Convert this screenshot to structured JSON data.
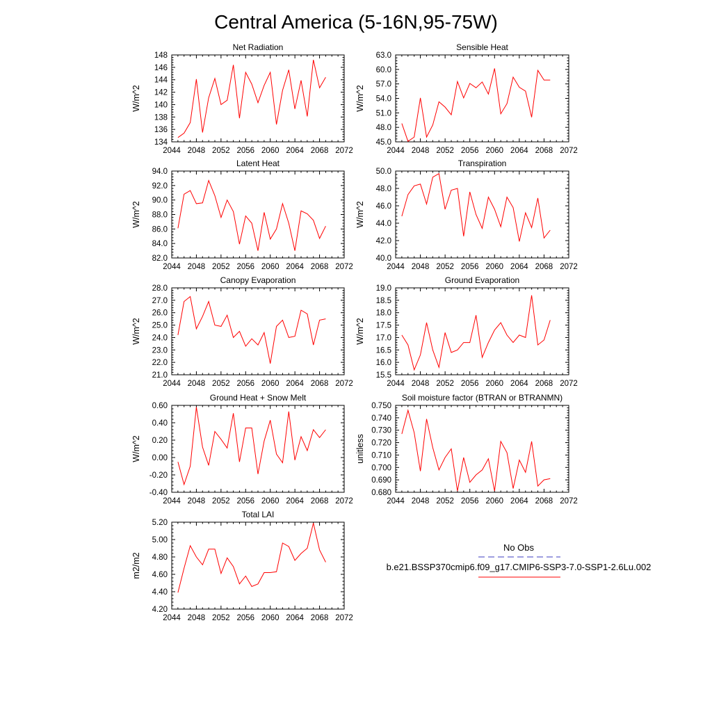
{
  "page_title": "Central America (5-16N,95-75W)",
  "legend": {
    "obs_label": "No Obs",
    "model_label": "b.e21.BSSP370cmip6.f09_g17.CMIP6-SSP3-7.0-SSP1-2.6Lu.002",
    "obs_color": "#3b3bc0",
    "model_color": "#ff0000"
  },
  "chart_data": [
    {
      "type": "line",
      "title": "Net Radiation",
      "ylabel": "W/m^2",
      "xlim": [
        2044,
        2072
      ],
      "xticks": [
        "2044",
        "2048",
        "2052",
        "2056",
        "2060",
        "2064",
        "2068",
        "2072"
      ],
      "ylim": [
        134,
        148
      ],
      "yticks": [
        "134",
        "136",
        "138",
        "140",
        "142",
        "144",
        "146",
        "148"
      ],
      "x": [
        2045,
        2046,
        2047,
        2048,
        2049,
        2050,
        2051,
        2052,
        2053,
        2054,
        2055,
        2056,
        2057,
        2058,
        2059,
        2060,
        2061,
        2062,
        2063,
        2064,
        2065,
        2066,
        2067,
        2068,
        2069
      ],
      "series": [
        {
          "color": "#ff0000",
          "values": [
            134.7,
            135.4,
            137.1,
            144.1,
            135.5,
            141.1,
            144.2,
            140.0,
            140.7,
            146.4,
            137.8,
            145.2,
            143.3,
            140.3,
            143.1,
            145.2,
            136.8,
            142.3,
            145.6,
            139.3,
            143.9,
            138.1,
            147.2,
            142.7,
            144.4
          ]
        }
      ]
    },
    {
      "type": "line",
      "title": "Sensible Heat",
      "ylabel": "W/m^2",
      "xlim": [
        2044,
        2072
      ],
      "xticks": [
        "2044",
        "2048",
        "2052",
        "2056",
        "2060",
        "2064",
        "2068",
        "2072"
      ],
      "ylim": [
        45.0,
        63.0
      ],
      "yticks": [
        "45.0",
        "48.0",
        "51.0",
        "54.0",
        "57.0",
        "60.0",
        "63.0"
      ],
      "x": [
        2045,
        2046,
        2047,
        2048,
        2049,
        2050,
        2051,
        2052,
        2053,
        2054,
        2055,
        2056,
        2057,
        2058,
        2059,
        2060,
        2061,
        2062,
        2063,
        2064,
        2065,
        2066,
        2067,
        2068,
        2069
      ],
      "series": [
        {
          "color": "#ff0000",
          "values": [
            48.8,
            45.1,
            46.0,
            54.1,
            46.0,
            48.5,
            53.3,
            52.2,
            50.6,
            57.5,
            54.1,
            57.1,
            56.2,
            57.4,
            54.9,
            60.2,
            50.8,
            52.9,
            58.4,
            56.3,
            55.5,
            50.1,
            59.8,
            57.8,
            57.8
          ]
        }
      ]
    },
    {
      "type": "line",
      "title": "Latent Heat",
      "ylabel": "W/m^2",
      "xlim": [
        2044,
        2072
      ],
      "xticks": [
        "2044",
        "2048",
        "2052",
        "2056",
        "2060",
        "2064",
        "2068",
        "2072"
      ],
      "ylim": [
        82.0,
        94.0
      ],
      "yticks": [
        "82.0",
        "84.0",
        "86.0",
        "88.0",
        "90.0",
        "92.0",
        "94.0"
      ],
      "x": [
        2045,
        2046,
        2047,
        2048,
        2049,
        2050,
        2051,
        2052,
        2053,
        2054,
        2055,
        2056,
        2057,
        2058,
        2059,
        2060,
        2061,
        2062,
        2063,
        2064,
        2065,
        2066,
        2067,
        2068,
        2069
      ],
      "series": [
        {
          "color": "#ff0000",
          "values": [
            86.1,
            90.8,
            91.3,
            89.5,
            89.6,
            92.7,
            90.6,
            87.6,
            90.0,
            88.4,
            83.9,
            87.8,
            86.8,
            83.0,
            88.3,
            84.6,
            86.0,
            89.5,
            86.8,
            83.0,
            88.5,
            88.1,
            87.2,
            84.7,
            86.4
          ]
        }
      ]
    },
    {
      "type": "line",
      "title": "Transpiration",
      "ylabel": "W/m^2",
      "xlim": [
        2044,
        2072
      ],
      "xticks": [
        "2044",
        "2048",
        "2052",
        "2056",
        "2060",
        "2064",
        "2068",
        "2072"
      ],
      "ylim": [
        40.0,
        50.0
      ],
      "yticks": [
        "40.0",
        "42.0",
        "44.0",
        "46.0",
        "48.0",
        "50.0"
      ],
      "x": [
        2045,
        2046,
        2047,
        2048,
        2049,
        2050,
        2051,
        2052,
        2053,
        2054,
        2055,
        2056,
        2057,
        2058,
        2059,
        2060,
        2061,
        2062,
        2063,
        2064,
        2065,
        2066,
        2067,
        2068,
        2069
      ],
      "series": [
        {
          "color": "#ff0000",
          "values": [
            44.8,
            47.3,
            48.3,
            48.5,
            46.2,
            49.3,
            49.7,
            45.6,
            47.8,
            48.0,
            42.5,
            47.6,
            45.0,
            43.4,
            47.0,
            45.6,
            43.6,
            47.0,
            45.8,
            41.9,
            45.2,
            43.5,
            46.9,
            42.3,
            43.2
          ]
        }
      ]
    },
    {
      "type": "line",
      "title": "Canopy Evaporation",
      "ylabel": "W/m^2",
      "xlim": [
        2044,
        2072
      ],
      "xticks": [
        "2044",
        "2048",
        "2052",
        "2056",
        "2060",
        "2064",
        "2068",
        "2072"
      ],
      "ylim": [
        21.0,
        28.0
      ],
      "yticks": [
        "21.0",
        "22.0",
        "23.0",
        "24.0",
        "25.0",
        "26.0",
        "27.0",
        "28.0"
      ],
      "x": [
        2045,
        2046,
        2047,
        2048,
        2049,
        2050,
        2051,
        2052,
        2053,
        2054,
        2055,
        2056,
        2057,
        2058,
        2059,
        2060,
        2061,
        2062,
        2063,
        2064,
        2065,
        2066,
        2067,
        2068,
        2069
      ],
      "series": [
        {
          "color": "#ff0000",
          "values": [
            24.2,
            26.9,
            27.3,
            24.7,
            25.7,
            26.9,
            25.0,
            24.9,
            25.8,
            24.0,
            24.5,
            23.3,
            23.9,
            23.4,
            24.4,
            21.9,
            24.9,
            25.4,
            24.0,
            24.1,
            26.2,
            25.9,
            23.4,
            25.4,
            25.5
          ]
        }
      ]
    },
    {
      "type": "line",
      "title": "Ground Evaporation",
      "ylabel": "W/m^2",
      "xlim": [
        2044,
        2072
      ],
      "xticks": [
        "2044",
        "2048",
        "2052",
        "2056",
        "2060",
        "2064",
        "2068",
        "2072"
      ],
      "ylim": [
        15.5,
        19.0
      ],
      "yticks": [
        "15.5",
        "16.0",
        "16.5",
        "17.0",
        "17.5",
        "18.0",
        "18.5",
        "19.0"
      ],
      "x": [
        2045,
        2046,
        2047,
        2048,
        2049,
        2050,
        2051,
        2052,
        2053,
        2054,
        2055,
        2056,
        2057,
        2058,
        2059,
        2060,
        2061,
        2062,
        2063,
        2064,
        2065,
        2066,
        2067,
        2068,
        2069
      ],
      "series": [
        {
          "color": "#ff0000",
          "values": [
            17.1,
            16.7,
            15.7,
            16.3,
            17.6,
            16.5,
            15.8,
            17.2,
            16.4,
            16.5,
            16.8,
            16.8,
            17.9,
            16.2,
            16.8,
            17.3,
            17.6,
            17.1,
            16.8,
            17.1,
            17.0,
            18.7,
            16.7,
            16.9,
            17.7
          ]
        }
      ]
    },
    {
      "type": "line",
      "title": "Ground Heat + Snow Melt",
      "ylabel": "W/m^2",
      "xlim": [
        2044,
        2072
      ],
      "xticks": [
        "2044",
        "2048",
        "2052",
        "2056",
        "2060",
        "2064",
        "2068",
        "2072"
      ],
      "ylim": [
        -0.4,
        0.6
      ],
      "yticks": [
        "-0.40",
        "-0.20",
        "0.00",
        "0.20",
        "0.40",
        "0.60"
      ],
      "x": [
        2045,
        2046,
        2047,
        2048,
        2049,
        2050,
        2051,
        2052,
        2053,
        2054,
        2055,
        2056,
        2057,
        2058,
        2059,
        2060,
        2061,
        2062,
        2063,
        2064,
        2065,
        2066,
        2067,
        2068,
        2069
      ],
      "series": [
        {
          "color": "#ff0000",
          "values": [
            -0.05,
            -0.31,
            -0.1,
            0.58,
            0.12,
            -0.09,
            0.3,
            0.21,
            0.11,
            0.51,
            -0.05,
            0.34,
            0.34,
            -0.19,
            0.19,
            0.43,
            0.04,
            -0.06,
            0.53,
            -0.03,
            0.24,
            0.08,
            0.32,
            0.23,
            0.32
          ]
        }
      ]
    },
    {
      "type": "line",
      "title": "Soil moisture factor (BTRAN or BTRANMN)",
      "ylabel": "unitless",
      "xlim": [
        2044,
        2072
      ],
      "xticks": [
        "2044",
        "2048",
        "2052",
        "2056",
        "2060",
        "2064",
        "2068",
        "2072"
      ],
      "ylim": [
        0.68,
        0.75
      ],
      "yticks": [
        "0.680",
        "0.690",
        "0.700",
        "0.710",
        "0.720",
        "0.730",
        "0.740",
        "0.750"
      ],
      "x": [
        2045,
        2046,
        2047,
        2048,
        2049,
        2050,
        2051,
        2052,
        2053,
        2054,
        2055,
        2056,
        2057,
        2058,
        2059,
        2060,
        2061,
        2062,
        2063,
        2064,
        2065,
        2066,
        2067,
        2068,
        2069
      ],
      "series": [
        {
          "color": "#ff0000",
          "values": [
            0.727,
            0.746,
            0.728,
            0.697,
            0.739,
            0.716,
            0.698,
            0.708,
            0.715,
            0.681,
            0.708,
            0.688,
            0.694,
            0.698,
            0.707,
            0.681,
            0.721,
            0.712,
            0.683,
            0.706,
            0.696,
            0.721,
            0.685,
            0.69,
            0.691
          ]
        }
      ]
    },
    {
      "type": "line",
      "title": "Total LAI",
      "ylabel": "m2/m2",
      "xlim": [
        2044,
        2072
      ],
      "xticks": [
        "2044",
        "2048",
        "2052",
        "2056",
        "2060",
        "2064",
        "2068",
        "2072"
      ],
      "ylim": [
        4.2,
        5.2
      ],
      "yticks": [
        "4.20",
        "4.40",
        "4.60",
        "4.80",
        "5.00",
        "5.20"
      ],
      "x": [
        2045,
        2046,
        2047,
        2048,
        2049,
        2050,
        2051,
        2052,
        2053,
        2054,
        2055,
        2056,
        2057,
        2058,
        2059,
        2060,
        2061,
        2062,
        2063,
        2064,
        2065,
        2066,
        2067,
        2068,
        2069
      ],
      "series": [
        {
          "color": "#ff0000",
          "values": [
            4.39,
            4.67,
            4.93,
            4.8,
            4.71,
            4.89,
            4.89,
            4.61,
            4.79,
            4.69,
            4.49,
            4.58,
            4.46,
            4.49,
            4.62,
            4.62,
            4.63,
            4.96,
            4.92,
            4.76,
            4.84,
            4.9,
            5.19,
            4.88,
            4.74
          ]
        }
      ]
    }
  ]
}
